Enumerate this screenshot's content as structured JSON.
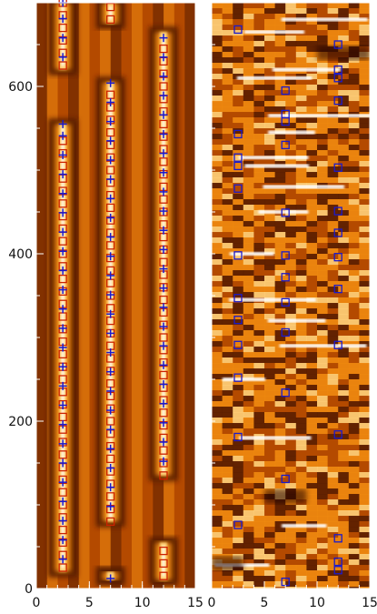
{
  "chart_data": [
    {
      "type": "heatmap",
      "panel": "left",
      "xlim": [
        0,
        15
      ],
      "ylim": [
        0,
        700
      ],
      "x_ticks": [
        0,
        5,
        10,
        15
      ],
      "y_ticks": [
        0,
        200,
        400,
        600
      ],
      "x_tick_labels": [
        "0",
        "5",
        "10",
        "15"
      ],
      "y_tick_labels": [
        "0",
        "200",
        "400",
        "600"
      ],
      "grid": false,
      "colormap": [
        "#1e0500",
        "#5a1e00",
        "#b44a00",
        "#f08a10",
        "#ffd27a",
        "#ffffff"
      ],
      "ridges": [
        {
          "x": 2.5,
          "y_ranges": [
            [
              20,
              555
            ],
            [
              620,
              700
            ]
          ]
        },
        {
          "x": 7.0,
          "y_ranges": [
            [
              10,
              20
            ],
            [
              80,
              605
            ],
            [
              675,
              700
            ]
          ]
        },
        {
          "x": 12.0,
          "y_ranges": [
            [
              10,
              55
            ],
            [
              135,
              665
            ]
          ]
        }
      ],
      "series": [
        {
          "marker": "square",
          "color": "#cc2200",
          "points": [
            [
              2.5,
              25
            ],
            [
              2.5,
              40
            ],
            [
              2.5,
              55
            ],
            [
              2.5,
              70
            ],
            [
              2.5,
              85
            ],
            [
              2.5,
              100
            ],
            [
              2.5,
              115
            ],
            [
              2.5,
              130
            ],
            [
              2.5,
              145
            ],
            [
              2.5,
              160
            ],
            [
              2.5,
              175
            ],
            [
              2.5,
              190
            ],
            [
              2.5,
              205
            ],
            [
              2.5,
              220
            ],
            [
              2.5,
              235
            ],
            [
              2.5,
              250
            ],
            [
              2.5,
              265
            ],
            [
              2.5,
              280
            ],
            [
              2.5,
              295
            ],
            [
              2.5,
              310
            ],
            [
              2.5,
              325
            ],
            [
              2.5,
              340
            ],
            [
              2.5,
              355
            ],
            [
              2.5,
              370
            ],
            [
              2.5,
              385
            ],
            [
              2.5,
              400
            ],
            [
              2.5,
              415
            ],
            [
              2.5,
              430
            ],
            [
              2.5,
              445
            ],
            [
              2.5,
              460
            ],
            [
              2.5,
              475
            ],
            [
              2.5,
              490
            ],
            [
              2.5,
              505
            ],
            [
              2.5,
              520
            ],
            [
              2.5,
              535
            ],
            [
              2.5,
              625
            ],
            [
              2.5,
              640
            ],
            [
              2.5,
              655
            ],
            [
              2.5,
              670
            ],
            [
              2.5,
              685
            ],
            [
              2.5,
              700
            ],
            [
              7.0,
              80
            ],
            [
              7.0,
              95
            ],
            [
              7.0,
              110
            ],
            [
              7.0,
              125
            ],
            [
              7.0,
              140
            ],
            [
              7.0,
              155
            ],
            [
              7.0,
              170
            ],
            [
              7.0,
              185
            ],
            [
              7.0,
              200
            ],
            [
              7.0,
              215
            ],
            [
              7.0,
              230
            ],
            [
              7.0,
              245
            ],
            [
              7.0,
              260
            ],
            [
              7.0,
              275
            ],
            [
              7.0,
              290
            ],
            [
              7.0,
              305
            ],
            [
              7.0,
              320
            ],
            [
              7.0,
              335
            ],
            [
              7.0,
              350
            ],
            [
              7.0,
              365
            ],
            [
              7.0,
              380
            ],
            [
              7.0,
              395
            ],
            [
              7.0,
              410
            ],
            [
              7.0,
              425
            ],
            [
              7.0,
              440
            ],
            [
              7.0,
              455
            ],
            [
              7.0,
              470
            ],
            [
              7.0,
              485
            ],
            [
              7.0,
              500
            ],
            [
              7.0,
              515
            ],
            [
              7.0,
              530
            ],
            [
              7.0,
              545
            ],
            [
              7.0,
              560
            ],
            [
              7.0,
              575
            ],
            [
              7.0,
              590
            ],
            [
              7.0,
              680
            ],
            [
              7.0,
              695
            ],
            [
              12.0,
              15
            ],
            [
              12.0,
              30
            ],
            [
              12.0,
              45
            ],
            [
              12.0,
              135
            ],
            [
              12.0,
              150
            ],
            [
              12.0,
              165
            ],
            [
              12.0,
              180
            ],
            [
              12.0,
              195
            ],
            [
              12.0,
              210
            ],
            [
              12.0,
              225
            ],
            [
              12.0,
              240
            ],
            [
              12.0,
              255
            ],
            [
              12.0,
              270
            ],
            [
              12.0,
              285
            ],
            [
              12.0,
              300
            ],
            [
              12.0,
              315
            ],
            [
              12.0,
              330
            ],
            [
              12.0,
              345
            ],
            [
              12.0,
              360
            ],
            [
              12.0,
              375
            ],
            [
              12.0,
              390
            ],
            [
              12.0,
              405
            ],
            [
              12.0,
              420
            ],
            [
              12.0,
              435
            ],
            [
              12.0,
              450
            ],
            [
              12.0,
              465
            ],
            [
              12.0,
              480
            ],
            [
              12.0,
              495
            ],
            [
              12.0,
              510
            ],
            [
              12.0,
              525
            ],
            [
              12.0,
              540
            ],
            [
              12.0,
              555
            ],
            [
              12.0,
              570
            ],
            [
              12.0,
              585
            ],
            [
              12.0,
              600
            ],
            [
              12.0,
              615
            ],
            [
              12.0,
              630
            ],
            [
              12.0,
              645
            ]
          ]
        },
        {
          "marker": "plus",
          "color": "#1a1acc",
          "points": [
            [
              2.5,
              35
            ],
            [
              2.5,
              58
            ],
            [
              2.5,
              81
            ],
            [
              2.5,
              104
            ],
            [
              2.5,
              127
            ],
            [
              2.5,
              150
            ],
            [
              2.5,
              173
            ],
            [
              2.5,
              196
            ],
            [
              2.5,
              219
            ],
            [
              2.5,
              242
            ],
            [
              2.5,
              265
            ],
            [
              2.5,
              288
            ],
            [
              2.5,
              311
            ],
            [
              2.5,
              334
            ],
            [
              2.5,
              357
            ],
            [
              2.5,
              380
            ],
            [
              2.5,
              403
            ],
            [
              2.5,
              426
            ],
            [
              2.5,
              449
            ],
            [
              2.5,
              472
            ],
            [
              2.5,
              495
            ],
            [
              2.5,
              518
            ],
            [
              2.5,
              541
            ],
            [
              2.5,
              555
            ],
            [
              2.5,
              635
            ],
            [
              2.5,
              658
            ],
            [
              2.5,
              681
            ],
            [
              2.5,
              700
            ],
            [
              7.0,
              12
            ],
            [
              7.0,
              98
            ],
            [
              7.0,
              121
            ],
            [
              7.0,
              144
            ],
            [
              7.0,
              167
            ],
            [
              7.0,
              190
            ],
            [
              7.0,
              213
            ],
            [
              7.0,
              236
            ],
            [
              7.0,
              259
            ],
            [
              7.0,
              282
            ],
            [
              7.0,
              305
            ],
            [
              7.0,
              328
            ],
            [
              7.0,
              351
            ],
            [
              7.0,
              374
            ],
            [
              7.0,
              397
            ],
            [
              7.0,
              420
            ],
            [
              7.0,
              443
            ],
            [
              7.0,
              466
            ],
            [
              7.0,
              489
            ],
            [
              7.0,
              512
            ],
            [
              7.0,
              535
            ],
            [
              7.0,
              558
            ],
            [
              7.0,
              581
            ],
            [
              7.0,
              604
            ],
            [
              12.0,
              152
            ],
            [
              12.0,
              175
            ],
            [
              12.0,
              198
            ],
            [
              12.0,
              221
            ],
            [
              12.0,
              244
            ],
            [
              12.0,
              267
            ],
            [
              12.0,
              290
            ],
            [
              12.0,
              313
            ],
            [
              12.0,
              336
            ],
            [
              12.0,
              359
            ],
            [
              12.0,
              382
            ],
            [
              12.0,
              405
            ],
            [
              12.0,
              428
            ],
            [
              12.0,
              451
            ],
            [
              12.0,
              474
            ],
            [
              12.0,
              497
            ],
            [
              12.0,
              520
            ],
            [
              12.0,
              543
            ],
            [
              12.0,
              566
            ],
            [
              12.0,
              589
            ],
            [
              12.0,
              612
            ],
            [
              12.0,
              635
            ],
            [
              12.0,
              658
            ]
          ]
        }
      ]
    },
    {
      "type": "heatmap",
      "panel": "right",
      "xlim": [
        0,
        15
      ],
      "ylim": [
        0,
        700
      ],
      "x_ticks": [
        0,
        5,
        10,
        15
      ],
      "x_tick_labels": [
        "0",
        "5",
        "10",
        "15"
      ],
      "grid": false,
      "colormap": [
        "#1e0500",
        "#5a1e00",
        "#b44a00",
        "#f08a10",
        "#ffd27a",
        "#ffffff"
      ],
      "bright_rows": [
        28,
        75,
        180,
        250,
        290,
        320,
        345,
        400,
        450,
        480,
        505,
        515,
        545,
        565,
        610,
        620,
        665,
        680
      ],
      "series": [
        {
          "marker": "square",
          "color": "#1a1acc",
          "points": [
            [
              2.5,
              668
            ],
            [
              2.5,
              543
            ],
            [
              2.5,
              515
            ],
            [
              2.5,
              505
            ],
            [
              2.5,
              478
            ],
            [
              2.5,
              398
            ],
            [
              2.5,
              347
            ],
            [
              2.5,
              321
            ],
            [
              2.5,
              291
            ],
            [
              2.5,
              252
            ],
            [
              2.5,
              181
            ],
            [
              2.5,
              76
            ],
            [
              7.0,
              595
            ],
            [
              7.0,
              567
            ],
            [
              7.0,
              558
            ],
            [
              7.0,
              530
            ],
            [
              7.0,
              449
            ],
            [
              7.0,
              398
            ],
            [
              7.0,
              372
            ],
            [
              7.0,
              342
            ],
            [
              7.0,
              306
            ],
            [
              7.0,
              234
            ],
            [
              7.0,
              131
            ],
            [
              7.0,
              8
            ],
            [
              12.0,
              650
            ],
            [
              12.0,
              620
            ],
            [
              12.0,
              610
            ],
            [
              12.0,
              583
            ],
            [
              12.0,
              503
            ],
            [
              12.0,
              451
            ],
            [
              12.0,
              425
            ],
            [
              12.0,
              396
            ],
            [
              12.0,
              358
            ],
            [
              12.0,
              291
            ],
            [
              12.0,
              184
            ],
            [
              12.0,
              60
            ],
            [
              12.0,
              32
            ],
            [
              12.0,
              22
            ]
          ]
        }
      ]
    }
  ]
}
